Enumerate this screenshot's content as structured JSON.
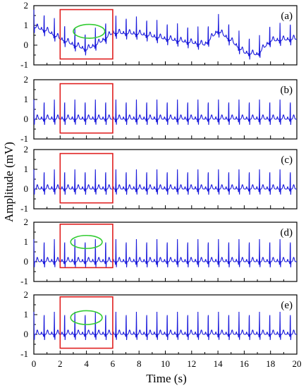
{
  "chart_data": {
    "type": "line",
    "xlabel": "Time (s)",
    "ylabel": "Amplitude (mV)",
    "xlim": [
      0,
      20
    ],
    "x_ticks": [
      0,
      2,
      4,
      6,
      8,
      10,
      12,
      14,
      16,
      18,
      20
    ],
    "x_tick_labels": [
      "0",
      "2",
      "4",
      "6",
      "8",
      "10",
      "12",
      "14",
      "16",
      "18",
      "20"
    ],
    "y_ticks": [
      -1,
      0,
      1,
      2
    ],
    "y_tick_labels": [
      "-1",
      "0",
      "1",
      "2"
    ],
    "grid": false,
    "line_color": "#1a1adb",
    "highlight_box_color": "#e02020",
    "highlight_ellipse_color": "#33cc33",
    "highlight_box_x_range": [
      2,
      6
    ],
    "beat_period_s": 0.78,
    "panels": [
      {
        "tag": "(a)",
        "ylim": [
          -1,
          2
        ],
        "description_baseline": "wandering",
        "highlight_box_y_range": [
          -0.7,
          1.8
        ],
        "ellipse": {
          "cx": 4.2,
          "cy": 0.7,
          "rx": 1.2,
          "ry": 0.35
        },
        "r_peak_height": 0.9,
        "baseline_drift": [
          {
            "x": 0,
            "y": 0.9
          },
          {
            "x": 1,
            "y": 0.7
          },
          {
            "x": 2,
            "y": 0.3
          },
          {
            "x": 3,
            "y": 0.0
          },
          {
            "x": 4,
            "y": -0.25
          },
          {
            "x": 5,
            "y": 0.1
          },
          {
            "x": 6,
            "y": 0.6
          },
          {
            "x": 8,
            "y": 0.55
          },
          {
            "x": 10,
            "y": 0.3
          },
          {
            "x": 12,
            "y": 0.1
          },
          {
            "x": 13,
            "y": 0.0
          },
          {
            "x": 14,
            "y": 0.7
          },
          {
            "x": 15,
            "y": 0.2
          },
          {
            "x": 16,
            "y": -0.4
          },
          {
            "x": 17,
            "y": -0.5
          },
          {
            "x": 18,
            "y": 0.2
          },
          {
            "x": 20,
            "y": 0.3
          }
        ]
      },
      {
        "tag": "(b)",
        "ylim": [
          -1,
          2
        ],
        "description_baseline": "flat",
        "highlight_box_y_range": [
          -0.7,
          1.8
        ],
        "r_peak_height": 1.0,
        "baseline_drift": [
          {
            "x": 0,
            "y": 0
          },
          {
            "x": 20,
            "y": 0
          }
        ]
      },
      {
        "tag": "(c)",
        "ylim": [
          -1,
          2
        ],
        "description_baseline": "flat",
        "highlight_box_y_range": [
          -0.7,
          1.8
        ],
        "r_peak_height": 1.0,
        "baseline_drift": [
          {
            "x": 0,
            "y": 0
          },
          {
            "x": 20,
            "y": 0
          }
        ]
      },
      {
        "tag": "(d)",
        "ylim": [
          -1,
          2
        ],
        "description_baseline": "flat",
        "highlight_box_y_range": [
          -0.3,
          1.9
        ],
        "ellipse": {
          "cx": 4.0,
          "cy": 1.0,
          "rx": 1.2,
          "ry": 0.33
        },
        "r_peak_height": 1.15,
        "baseline_drift": [
          {
            "x": 0,
            "y": 0
          },
          {
            "x": 20,
            "y": 0
          }
        ]
      },
      {
        "tag": "(e)",
        "ylim": [
          -1,
          2
        ],
        "description_baseline": "flat",
        "highlight_box_y_range": [
          -0.7,
          1.9
        ],
        "ellipse": {
          "cx": 4.0,
          "cy": 0.85,
          "rx": 1.2,
          "ry": 0.35
        },
        "r_peak_height": 1.15,
        "baseline_drift": [
          {
            "x": 0,
            "y": 0
          },
          {
            "x": 20,
            "y": 0
          }
        ]
      }
    ]
  }
}
